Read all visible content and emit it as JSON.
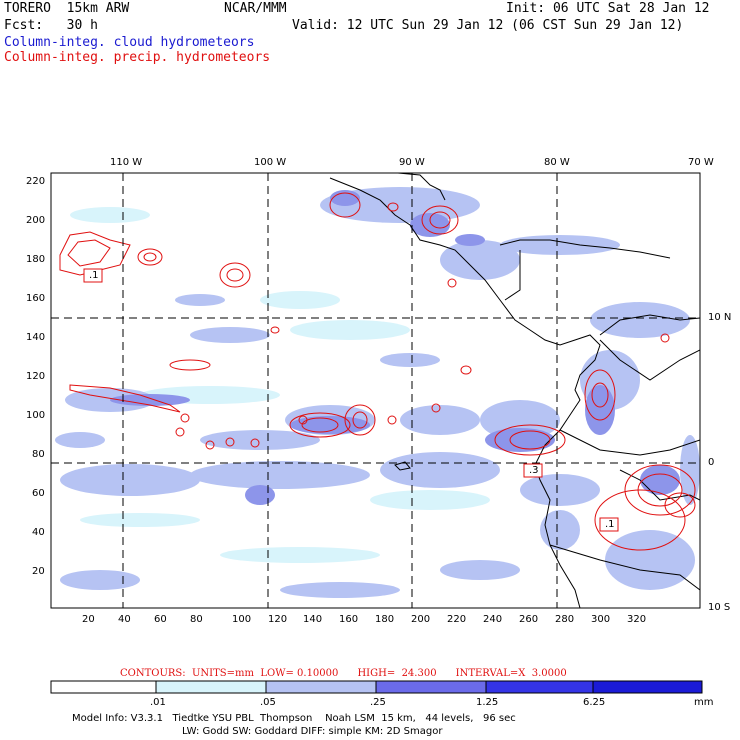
{
  "header": {
    "model": "TORERO  15km ARW",
    "org": "NCAR/MMM",
    "init": "Init: 06 UTC Sat 28 Jan 12",
    "fcst": "Fcst:   30 h",
    "valid": "Valid: 12 UTC Sun 29 Jan 12 (06 CST Sun 29 Jan 12)",
    "field1": "Column-integ. cloud hydrometeors",
    "field2": "Column-integ. precip. hydrometeors"
  },
  "colors": {
    "cloud_field": "#1a1ad0",
    "precip_field": "#e01010",
    "shade_levels": [
      "#ffffff",
      "#d8f4fb",
      "#b6c3f3",
      "#9aa6ef",
      "#6b6bea",
      "#3434e6",
      "#1b1bd6"
    ]
  },
  "map": {
    "top_lon_labels": [
      "110 W",
      "100 W",
      "90 W",
      "80 W",
      "70 W"
    ],
    "right_lat_labels": [
      "10 N",
      "0",
      "10 S"
    ],
    "left_y_ticks": [
      "220",
      "200",
      "180",
      "160",
      "140",
      "120",
      "100",
      "80",
      "60",
      "40",
      "20"
    ],
    "bottom_x_ticks": [
      "20",
      "40",
      "60",
      "80",
      "100",
      "120",
      "140",
      "160",
      "180",
      "200",
      "220",
      "240",
      "260",
      "280",
      "300",
      "320"
    ],
    "contour_labels": [
      ".1",
      ".3",
      ".1"
    ]
  },
  "legend": {
    "contour_info": "CONTOURS:  UNITS=mm  LOW= 0.10000      HIGH=  24.300      INTERVAL=X  3.0000",
    "colorbar_labels": [
      ".01",
      ".05",
      ".25",
      "1.25",
      "6.25",
      "mm"
    ]
  },
  "footer": {
    "line1": "Model Info: V3.3.1   Tiedtke YSU PBL  Thompson    Noah LSM  15 km,   44 levels,   96 sec",
    "line2": "LW: Godd SW: Goddard DIFF: simple KM: 2D Smagor"
  }
}
